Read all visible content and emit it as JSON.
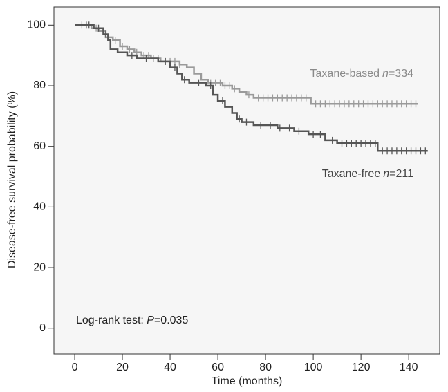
{
  "chart_data": {
    "type": "km",
    "x_label": "Time (months)",
    "y_label": "Disease-free survival probability (%)",
    "annotation": {
      "text": "Log-rank test: ",
      "italic": "P",
      "rest": "=0.035"
    },
    "xlim": [
      -8.7,
      153
    ],
    "ylim": [
      -8.5,
      106
    ],
    "xticks": [
      0,
      20,
      40,
      60,
      80,
      100,
      120,
      140
    ],
    "yticks": [
      0,
      20,
      40,
      60,
      80,
      100
    ],
    "series": [
      {
        "name": "Taxane-based",
        "n_italic": "n",
        "n_rest": "=334",
        "color": "#9a9a9a",
        "x": [
          0,
          7,
          10,
          13,
          16,
          19,
          22,
          25,
          28,
          32,
          36,
          44,
          47,
          50,
          53,
          56,
          62,
          66,
          69,
          72,
          75,
          99,
          144
        ],
        "values": [
          100,
          99,
          98,
          96,
          95,
          93,
          92,
          91,
          90,
          89,
          88,
          87,
          86,
          84,
          82,
          81,
          80,
          79,
          78,
          77,
          76,
          74,
          74
        ],
        "censored": [
          3,
          5,
          9,
          12,
          14,
          17,
          20,
          23,
          26,
          29,
          31,
          33,
          35,
          38,
          40,
          42,
          44,
          57,
          59,
          61,
          63,
          65,
          67,
          73,
          77,
          79,
          81,
          83,
          85,
          87,
          89,
          91,
          93,
          95,
          97,
          101,
          103,
          105,
          107,
          109,
          111,
          113,
          115,
          117,
          119,
          121,
          123,
          125,
          127,
          129,
          131,
          133,
          135,
          137,
          139,
          141,
          143
        ]
      },
      {
        "name": "Taxane-free",
        "n_italic": "n",
        "n_rest": "=211",
        "color": "#555555",
        "x": [
          0,
          8,
          12,
          14,
          15,
          18,
          22,
          26,
          35,
          40,
          43,
          45,
          48,
          55,
          58,
          60,
          63,
          66,
          68,
          70,
          75,
          85,
          92,
          98,
          105,
          110,
          127,
          148
        ],
        "values": [
          100,
          99,
          97,
          95,
          92,
          91,
          90,
          89,
          88,
          86,
          84,
          82,
          81,
          80,
          77,
          75,
          73,
          71,
          69,
          68,
          67,
          66,
          65,
          64,
          62,
          61,
          58.5,
          58.5
        ],
        "censored": [
          6,
          10,
          13,
          24,
          30,
          38,
          42,
          46,
          52,
          57,
          62,
          69,
          72,
          78,
          82,
          86,
          90,
          94,
          100,
          103,
          108,
          112,
          114,
          116,
          118,
          120,
          122,
          124,
          126,
          129,
          131,
          133,
          135,
          137,
          139,
          141,
          143,
          145,
          147
        ]
      }
    ]
  }
}
